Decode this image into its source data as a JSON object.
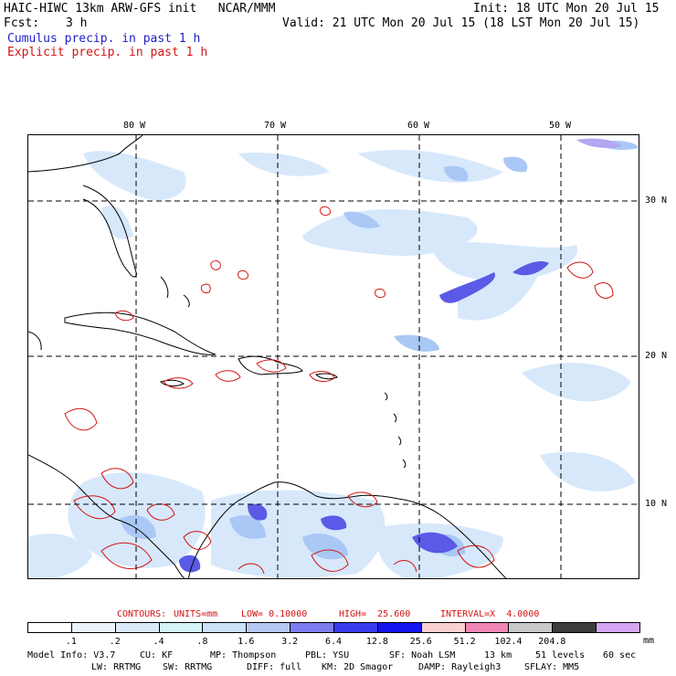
{
  "header": {
    "model_title": "HAIC-HIWC 13km ARW-GFS init   NCAR/MMM",
    "fcst_label": "Fcst:",
    "fcst_value": "3 h",
    "init": "Init: 18 UTC Mon 20 Jul 15",
    "valid": "Valid: 21 UTC Mon 20 Jul 15 (18 LST Mon 20 Jul 15)",
    "cumulus_label": "Cumulus precip. in past 1 h",
    "explicit_label": "Explicit precip. in past 1 h"
  },
  "map": {
    "lon_labels": [
      "80 W",
      "70 W",
      "60 W",
      "50 W"
    ],
    "lat_labels": [
      "30 N",
      "20 N",
      "10 N"
    ],
    "colors": {
      "coast": "#000000",
      "grid": "#000000",
      "explicit_contour": "#d21414",
      "cumulus_light": "#d7e8fb",
      "cumulus_mid": "#a9c8f5",
      "cumulus_heavy": "#5a5ae6"
    }
  },
  "contours_line": {
    "contours": "CONTOURS:",
    "units": "UNITS=mm",
    "low": "LOW= 0.10000",
    "high": "HIGH=  25.600",
    "interval": "INTERVAL=X  4.0000"
  },
  "colorbar": {
    "colors": [
      "#ffffff",
      "#ebf3fc",
      "#dbeaf9",
      "#d4f2f8",
      "#c9e2f7",
      "#b4c8f2",
      "#7d7df0",
      "#3a3aee",
      "#1414f0",
      "#fbd0d0",
      "#f086b4",
      "#c8c8c8",
      "#3c3c3c",
      "#d6a6f5"
    ],
    "labels": [
      ".1",
      ".2",
      ".4",
      ".8",
      "1.6",
      "3.2",
      "6.4",
      "12.8",
      "25.6",
      "51.2",
      "102.4",
      "204.8"
    ],
    "unit": "mm"
  },
  "footer": {
    "line1": [
      "Model Info: V3.7",
      "CU: KF",
      "MP: Thompson",
      "PBL: YSU",
      "SF: Noah LSM",
      "13 km",
      "51 levels",
      "60 sec"
    ],
    "line2": [
      "LW: RRTMG",
      "SW: RRTMG",
      "DIFF: full",
      "KM: 2D Smagor",
      "DAMP: Rayleigh3",
      "SFLAY: MM5"
    ]
  }
}
